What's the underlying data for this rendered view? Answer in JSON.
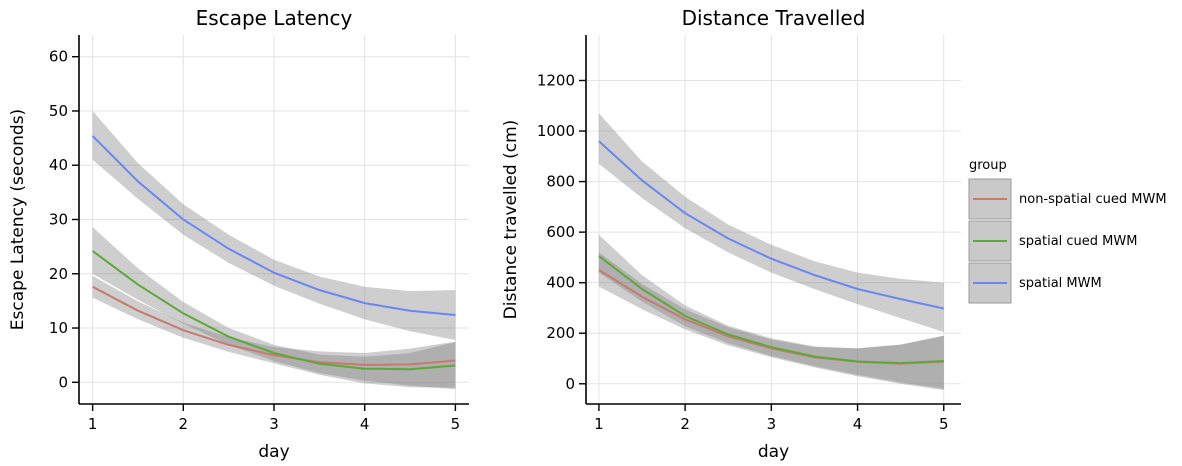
{
  "chart_data": [
    {
      "type": "line",
      "title": "Escape Latency",
      "xlabel": "day",
      "ylabel": "Escape Latency (seconds)",
      "xlim": [
        0.85,
        5.15
      ],
      "ylim": [
        -4,
        64
      ],
      "xticks": [
        1,
        2,
        3,
        4,
        5
      ],
      "yticks": [
        0,
        10,
        20,
        30,
        40,
        50,
        60
      ],
      "grid": true,
      "x": [
        1,
        1.5,
        2,
        2.5,
        3,
        3.5,
        4,
        4.5,
        5
      ],
      "series": [
        {
          "name": "non-spatial cued MWM",
          "color": "#c77a6e",
          "values": [
            17.6,
            13.2,
            9.6,
            6.9,
            5.0,
            3.7,
            3.2,
            3.3,
            4.0
          ],
          "lower": [
            15.6,
            11.6,
            8.2,
            5.6,
            3.5,
            1.4,
            -0.2,
            -0.9,
            -1.0
          ],
          "upper": [
            19.6,
            14.9,
            11.0,
            8.3,
            6.5,
            5.7,
            5.4,
            6.2,
            7.5
          ]
        },
        {
          "name": "spatial cued MWM",
          "color": "#5ea83a",
          "values": [
            24.2,
            18.0,
            12.7,
            8.4,
            5.4,
            3.4,
            2.5,
            2.4,
            3.1
          ],
          "lower": [
            20.0,
            15.2,
            10.8,
            6.9,
            3.9,
            1.7,
            0.3,
            -0.6,
            -1.3
          ],
          "upper": [
            28.6,
            21.0,
            14.8,
            10.0,
            6.9,
            5.1,
            4.7,
            5.4,
            7.4
          ]
        },
        {
          "name": "spatial MWM",
          "color": "#6a86f0",
          "values": [
            45.4,
            37.0,
            30.0,
            24.6,
            20.2,
            17.0,
            14.6,
            13.2,
            12.4
          ],
          "lower": [
            41.0,
            33.8,
            27.2,
            22.0,
            17.8,
            14.5,
            11.6,
            9.4,
            7.8
          ],
          "upper": [
            50.0,
            40.4,
            32.8,
            27.2,
            22.6,
            19.5,
            17.6,
            16.8,
            17.0
          ]
        }
      ]
    },
    {
      "type": "line",
      "title": "Distance Travelled",
      "xlabel": "day",
      "ylabel": "Distance travelled (cm)",
      "xlim": [
        0.85,
        5.2
      ],
      "ylim": [
        -80,
        1380
      ],
      "xticks": [
        1,
        2,
        3,
        4,
        5
      ],
      "yticks": [
        0,
        200,
        400,
        600,
        800,
        1000,
        1200
      ],
      "grid": true,
      "x": [
        1,
        1.5,
        2,
        2.5,
        3,
        3.5,
        4,
        4.5,
        5
      ],
      "series": [
        {
          "name": "non-spatial cued MWM",
          "color": "#c77a6e",
          "values": [
            450,
            345,
            255,
            188,
            140,
            105,
            87,
            80,
            88
          ],
          "lower": [
            385,
            295,
            215,
            152,
            105,
            65,
            30,
            0,
            -25
          ],
          "upper": [
            520,
            395,
            295,
            224,
            175,
            145,
            140,
            155,
            190
          ]
        },
        {
          "name": "spatial cued MWM",
          "color": "#5ea83a",
          "values": [
            505,
            375,
            268,
            195,
            145,
            108,
            88,
            82,
            90
          ],
          "lower": [
            440,
            325,
            228,
            160,
            110,
            70,
            35,
            5,
            -20
          ],
          "upper": [
            590,
            430,
            310,
            230,
            180,
            148,
            140,
            155,
            190
          ]
        },
        {
          "name": "spatial MWM",
          "color": "#6a86f0",
          "values": [
            960,
            805,
            675,
            575,
            495,
            430,
            375,
            335,
            298
          ],
          "lower": [
            870,
            735,
            615,
            520,
            440,
            375,
            315,
            260,
            205
          ],
          "upper": [
            1070,
            880,
            740,
            630,
            550,
            485,
            440,
            415,
            400
          ]
        }
      ]
    }
  ],
  "legend": {
    "title": "group",
    "placement": "right",
    "items": [
      {
        "label": "non-spatial cued MWM",
        "color": "#c77a6e"
      },
      {
        "label": "spatial cued MWM",
        "color": "#5ea83a"
      },
      {
        "label": "spatial MWM",
        "color": "#6a86f0"
      }
    ]
  }
}
